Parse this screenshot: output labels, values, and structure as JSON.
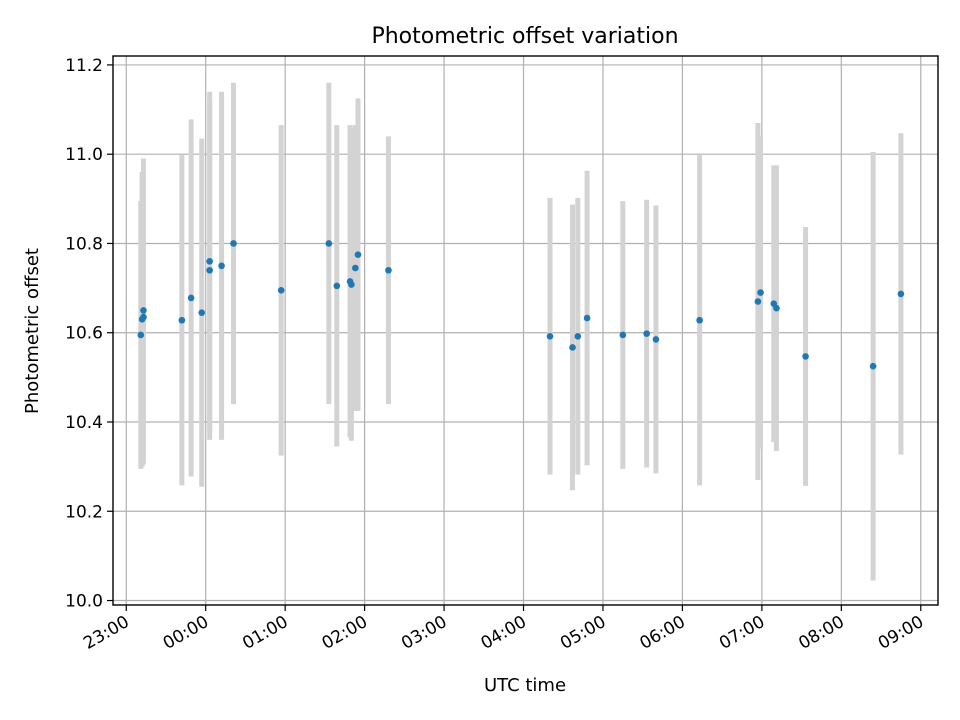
{
  "chart_data": {
    "type": "scatter",
    "title": "Photometric offset variation",
    "xlabel": "UTC time",
    "ylabel": "Photometric offset",
    "x_ticks": [
      "23:00",
      "00:00",
      "01:00",
      "02:00",
      "03:00",
      "04:00",
      "05:00",
      "06:00",
      "07:00",
      "08:00",
      "09:00"
    ],
    "x_tick_labels_rotated": true,
    "xlim": [
      "22:50",
      "09:13"
    ],
    "ylim": [
      9.99,
      11.22
    ],
    "y_ticks": [
      10.0,
      10.2,
      10.4,
      10.6,
      10.8,
      11.0,
      11.2
    ],
    "grid": true,
    "colors": {
      "points": "#1f77b4",
      "error_bars": "#d3d3d3"
    },
    "points": [
      {
        "x": "23:11",
        "y": 10.595,
        "err": 0.3
      },
      {
        "x": "23:12",
        "y": 10.63,
        "err": 0.33
      },
      {
        "x": "23:13",
        "y": 10.635,
        "err": 0.33
      },
      {
        "x": "23:13",
        "y": 10.65,
        "err": 0.34
      },
      {
        "x": "23:42",
        "y": 10.628,
        "err": 0.37
      },
      {
        "x": "23:49",
        "y": 10.678,
        "err": 0.4
      },
      {
        "x": "23:57",
        "y": 10.645,
        "err": 0.39
      },
      {
        "x": "00:03",
        "y": 10.74,
        "err": 0.38
      },
      {
        "x": "00:03",
        "y": 10.76,
        "err": 0.38
      },
      {
        "x": "00:12",
        "y": 10.75,
        "err": 0.39
      },
      {
        "x": "00:21",
        "y": 10.8,
        "err": 0.36
      },
      {
        "x": "00:57",
        "y": 10.695,
        "err": 0.37
      },
      {
        "x": "01:33",
        "y": 10.8,
        "err": 0.36
      },
      {
        "x": "01:39",
        "y": 10.705,
        "err": 0.36
      },
      {
        "x": "01:49",
        "y": 10.715,
        "err": 0.35
      },
      {
        "x": "01:50",
        "y": 10.708,
        "err": 0.35
      },
      {
        "x": "01:53",
        "y": 10.745,
        "err": 0.32
      },
      {
        "x": "01:55",
        "y": 10.775,
        "err": 0.35
      },
      {
        "x": "02:18",
        "y": 10.74,
        "err": 0.3
      },
      {
        "x": "04:20",
        "y": 10.592,
        "err": 0.31
      },
      {
        "x": "04:37",
        "y": 10.567,
        "err": 0.32
      },
      {
        "x": "04:41",
        "y": 10.592,
        "err": 0.31
      },
      {
        "x": "04:48",
        "y": 10.633,
        "err": 0.33
      },
      {
        "x": "05:15",
        "y": 10.595,
        "err": 0.3
      },
      {
        "x": "05:33",
        "y": 10.598,
        "err": 0.3
      },
      {
        "x": "05:40",
        "y": 10.585,
        "err": 0.3
      },
      {
        "x": "06:13",
        "y": 10.628,
        "err": 0.37
      },
      {
        "x": "06:57",
        "y": 10.67,
        "err": 0.4
      },
      {
        "x": "06:59",
        "y": 10.69,
        "err": 0.35
      },
      {
        "x": "07:09",
        "y": 10.665,
        "err": 0.31
      },
      {
        "x": "07:11",
        "y": 10.655,
        "err": 0.32
      },
      {
        "x": "07:33",
        "y": 10.547,
        "err": 0.29
      },
      {
        "x": "08:24",
        "y": 10.525,
        "err": 0.48
      },
      {
        "x": "08:45",
        "y": 10.687,
        "err": 0.36
      }
    ]
  }
}
